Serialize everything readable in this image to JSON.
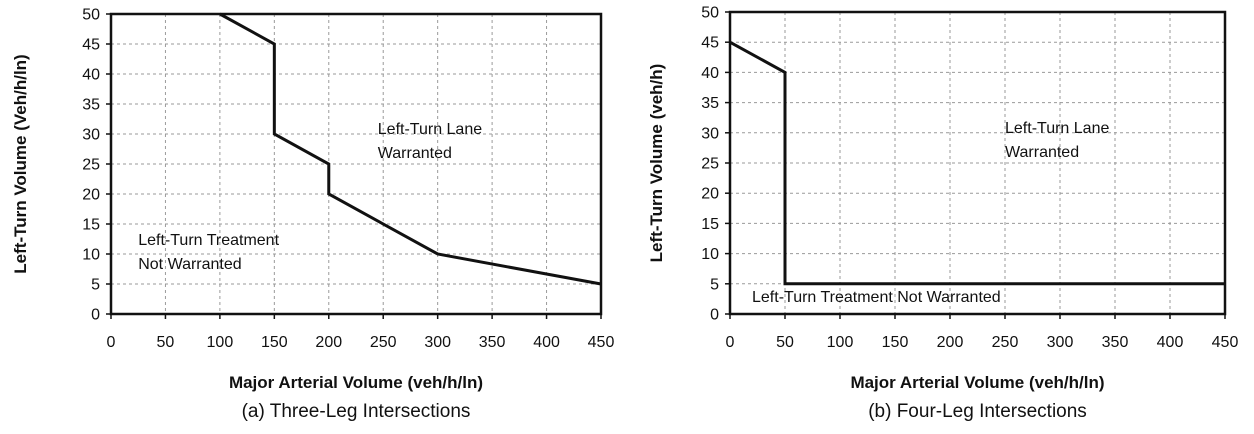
{
  "chart_data": [
    {
      "type": "line",
      "caption": "(a) Three-Leg Intersections",
      "xlabel": "Major Arterial Volume (veh/h/ln)",
      "ylabel": "Left-Turn Volume  (Veh/h/ln)",
      "xlim": [
        0,
        450
      ],
      "ylim": [
        0,
        50
      ],
      "xticks": [
        0,
        50,
        100,
        150,
        200,
        250,
        300,
        350,
        400,
        450
      ],
      "yticks": [
        0,
        5,
        10,
        15,
        20,
        25,
        30,
        35,
        40,
        45,
        50
      ],
      "grid": true,
      "series": [
        {
          "x": [
            100,
            150,
            150,
            200,
            200,
            300,
            450
          ],
          "y": [
            50,
            45,
            30,
            25,
            20,
            10,
            5
          ]
        }
      ],
      "annotations": [
        {
          "lines": [
            "Left-Turn Lane",
            "Warranted"
          ],
          "x": 245,
          "y": 30
        },
        {
          "lines": [
            "Left-Turn Treatment",
            "Not Warranted"
          ],
          "x": 25,
          "y": 11.5
        }
      ]
    },
    {
      "type": "line",
      "caption": "(b) Four-Leg Intersections",
      "xlabel": "Major Arterial Volume (veh/h/ln)",
      "ylabel": "Left-Turn Volume (veh/h)",
      "xlim": [
        0,
        450
      ],
      "ylim": [
        0,
        50
      ],
      "xticks": [
        0,
        50,
        100,
        150,
        200,
        250,
        300,
        350,
        400,
        450
      ],
      "yticks": [
        0,
        5,
        10,
        15,
        20,
        25,
        30,
        35,
        40,
        45,
        50
      ],
      "grid": true,
      "series": [
        {
          "x": [
            0,
            50,
            50,
            450
          ],
          "y": [
            45,
            40,
            5,
            5
          ]
        }
      ],
      "annotations": [
        {
          "lines": [
            "Left-Turn Lane",
            "Warranted"
          ],
          "x": 250,
          "y": 30
        },
        {
          "lines": [
            "Left-Turn Treatment Not Warranted"
          ],
          "x": 20,
          "y": 2
        }
      ]
    }
  ]
}
